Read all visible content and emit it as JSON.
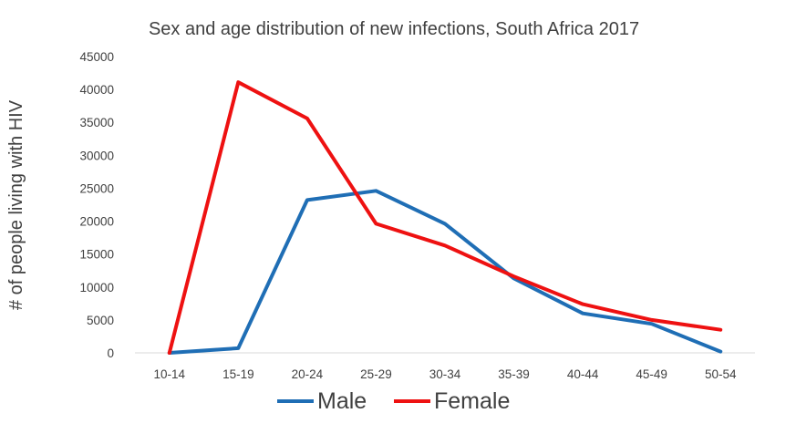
{
  "chart_data": {
    "type": "line",
    "title": "Sex and age distribution of new infections, South Africa 2017",
    "xlabel": "",
    "ylabel": "# of people living with HIV",
    "categories": [
      "10-14",
      "15-19",
      "20-24",
      "25-29",
      "30-34",
      "35-39",
      "40-44",
      "45-49",
      "50-54"
    ],
    "ylim": [
      0,
      45000
    ],
    "yticks": [
      0,
      5000,
      10000,
      15000,
      20000,
      25000,
      30000,
      35000,
      40000,
      45000
    ],
    "grid": false,
    "legend_position": "bottom",
    "series": [
      {
        "name": "Male",
        "color": "#1f6eb5",
        "values": [
          0,
          700,
          23200,
          24600,
          19600,
          11300,
          6000,
          4400,
          200
        ]
      },
      {
        "name": "Female",
        "color": "#ee1111",
        "values": [
          0,
          41100,
          35600,
          19600,
          16300,
          11600,
          7400,
          5000,
          3500
        ]
      }
    ]
  }
}
